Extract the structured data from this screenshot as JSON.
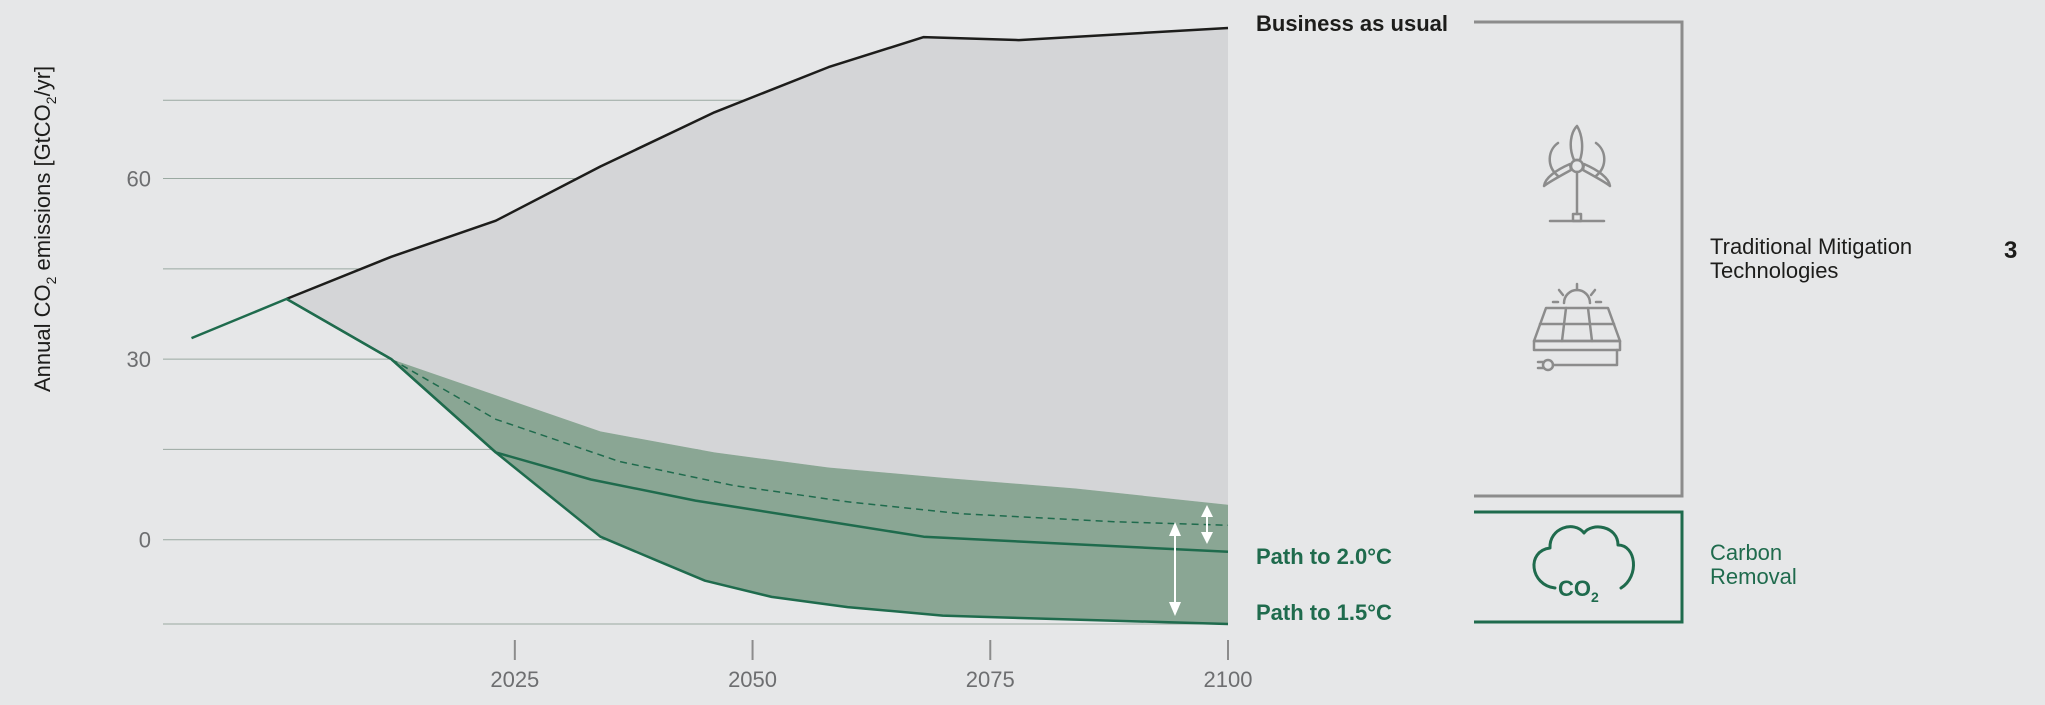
{
  "chart_data": {
    "type": "area",
    "ylabel": {
      "pre": "Annual CO",
      "sub1": "2",
      "mid": " emissions [GtCO",
      "sub2": "2",
      "post": "/yr]"
    },
    "xlim": [
      1988,
      2100
    ],
    "ylim": [
      -14,
      86
    ],
    "x_ticks": [
      2025,
      2050,
      2075,
      2100
    ],
    "x_tick_labels": [
      "2025",
      "2050",
      "2075",
      "2100"
    ],
    "y_gridlines": [
      -14,
      0,
      15,
      30,
      45,
      60,
      73
    ],
    "y_tick_labels": [
      {
        "value": 0,
        "label": "0"
      },
      {
        "value": 30,
        "label": "30"
      },
      {
        "value": 60,
        "label": "60"
      }
    ],
    "grid": true,
    "series": [
      {
        "name": "Business as usual",
        "color": "#1d1d1b",
        "x": [
          2001,
          2012,
          2023,
          2034,
          2046,
          2058,
          2068,
          2078,
          2100
        ],
        "y": [
          40,
          47,
          53,
          62,
          71,
          78.5,
          83.5,
          83,
          85
        ]
      },
      {
        "name": "Path to 2.0°C",
        "color": "#1f6b4d",
        "x": [
          1991,
          2001,
          2012,
          2023,
          2033,
          2044,
          2056,
          2068,
          2078,
          2100
        ],
        "y": [
          33.5,
          40,
          30,
          14.5,
          10,
          6.5,
          3.5,
          0.5,
          -0.3,
          -2
        ]
      },
      {
        "name": "Path to 1.5°C",
        "color": "#1f6b4d",
        "x": [
          2001,
          2012,
          2023,
          2034,
          2040,
          2045,
          2052,
          2060,
          2070,
          2076,
          2100
        ],
        "y": [
          40,
          30,
          14.5,
          0.5,
          -3.5,
          -6.8,
          -9.5,
          -11.2,
          -12.6,
          -12.9,
          -14
        ]
      }
    ],
    "intermediate_path_dashed": {
      "x": [
        2012,
        2023,
        2036,
        2048,
        2060,
        2072,
        2088,
        2100
      ],
      "y": [
        30,
        20,
        13,
        9,
        6.3,
        4.3,
        3,
        2.4
      ]
    },
    "mitigation_band_upper": {
      "x": [
        2001,
        2012,
        2034,
        2046,
        2058,
        2070,
        2084,
        2100
      ],
      "y": [
        40,
        30,
        18,
        14.5,
        12,
        10.3,
        8.5,
        5.8
      ]
    },
    "colors": {
      "bau_fill": "#d4d5d7",
      "band_fill": "#8aa694",
      "accent_green": "#1f6b4d",
      "bracket_gray": "#8c8c8c"
    }
  },
  "labels": {
    "business_as_usual": "Business as usual",
    "path_2": "Path to 2.0°C",
    "path_15": "Path to 1.5°C",
    "traditional_line1": "Traditional Mitigation",
    "traditional_line2": "Technologies",
    "carbon_line1": "Carbon",
    "carbon_line2": "Removal",
    "co2_main": "CO",
    "co2_sub": "2",
    "marker_number": "3"
  },
  "icons": [
    "wind-turbine-icon",
    "solar-panel-icon",
    "co2-cloud-icon"
  ]
}
